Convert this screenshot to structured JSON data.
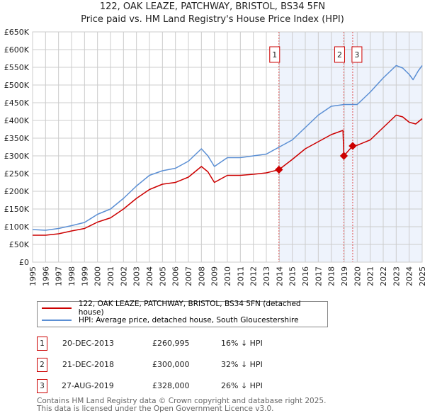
{
  "chart_data": {
    "type": "line",
    "title": "122, OAK LEAZE, PATCHWAY, BRISTOL, BS34 5FN",
    "subtitle": "Price paid vs. HM Land Registry's House Price Index (HPI)",
    "xlim": [
      1995,
      2025
    ],
    "ylim": [
      0,
      650000
    ],
    "x_ticks": [
      "1995",
      "1996",
      "1997",
      "1998",
      "1999",
      "2000",
      "2001",
      "2002",
      "2003",
      "2004",
      "2005",
      "2006",
      "2007",
      "2008",
      "2009",
      "2010",
      "2011",
      "2012",
      "2013",
      "2014",
      "2015",
      "2016",
      "2017",
      "2018",
      "2019",
      "2020",
      "2021",
      "2022",
      "2023",
      "2024",
      "2025"
    ],
    "y_ticks": [
      "£0",
      "£50K",
      "£100K",
      "£150K",
      "£200K",
      "£250K",
      "£300K",
      "£350K",
      "£400K",
      "£450K",
      "£500K",
      "£550K",
      "£600K",
      "£650K"
    ],
    "grid": true,
    "series": [
      {
        "name": "122, OAK LEAZE, PATCHWAY, BRISTOL, BS34 5FN (detached house)",
        "color": "#cc0000",
        "x": [
          1995,
          1996,
          1997,
          1998,
          1999,
          2000,
          2001,
          2002,
          2003,
          2004,
          2005,
          2006,
          2007,
          2008,
          2008.5,
          2009,
          2010,
          2011,
          2012,
          2013,
          2013.97,
          2015,
          2016,
          2017,
          2018,
          2018.9,
          2018.97,
          2019.65,
          2020,
          2021,
          2022,
          2023,
          2023.5,
          2024,
          2024.5,
          2025
        ],
        "y": [
          76000,
          76000,
          80000,
          88000,
          95000,
          113000,
          125000,
          150000,
          180000,
          205000,
          220000,
          225000,
          240000,
          270000,
          255000,
          225000,
          245000,
          245000,
          248000,
          252000,
          260995,
          290000,
          320000,
          340000,
          360000,
          372000,
          300000,
          328000,
          330000,
          345000,
          380000,
          415000,
          410000,
          395000,
          390000,
          405000
        ]
      },
      {
        "name": "HPI: Average price, detached house, South Gloucestershire",
        "color": "#5b8fd4",
        "x": [
          1995,
          1996,
          1997,
          1998,
          1999,
          2000,
          2001,
          2002,
          2003,
          2004,
          2005,
          2006,
          2007,
          2008,
          2008.5,
          2009,
          2010,
          2011,
          2012,
          2013,
          2014,
          2015,
          2016,
          2017,
          2018,
          2019,
          2020,
          2021,
          2022,
          2023,
          2023.5,
          2024,
          2024.3,
          2024.7,
          2025
        ],
        "y": [
          92000,
          90000,
          95000,
          103000,
          112000,
          135000,
          150000,
          180000,
          215000,
          245000,
          258000,
          265000,
          285000,
          320000,
          300000,
          270000,
          295000,
          295000,
          300000,
          305000,
          325000,
          345000,
          380000,
          415000,
          440000,
          445000,
          445000,
          480000,
          520000,
          555000,
          548000,
          530000,
          515000,
          540000,
          555000
        ]
      }
    ],
    "sales": [
      {
        "label": "1",
        "x": 2013.97,
        "date": "20-DEC-2013",
        "price": "£260,995",
        "value": 260995,
        "hpi": "16% ↓ HPI"
      },
      {
        "label": "2",
        "x": 2018.97,
        "date": "21-DEC-2018",
        "price": "£300,000",
        "value": 300000,
        "hpi": "32% ↓ HPI"
      },
      {
        "label": "3",
        "x": 2019.65,
        "date": "27-AUG-2019",
        "price": "£328,000",
        "value": 328000,
        "hpi": "26% ↓ HPI"
      }
    ],
    "legend_placement": "below"
  },
  "footer": {
    "line1": "Contains HM Land Registry data © Crown copyright and database right 2025.",
    "line2": "This data is licensed under the Open Government Licence v3.0."
  }
}
